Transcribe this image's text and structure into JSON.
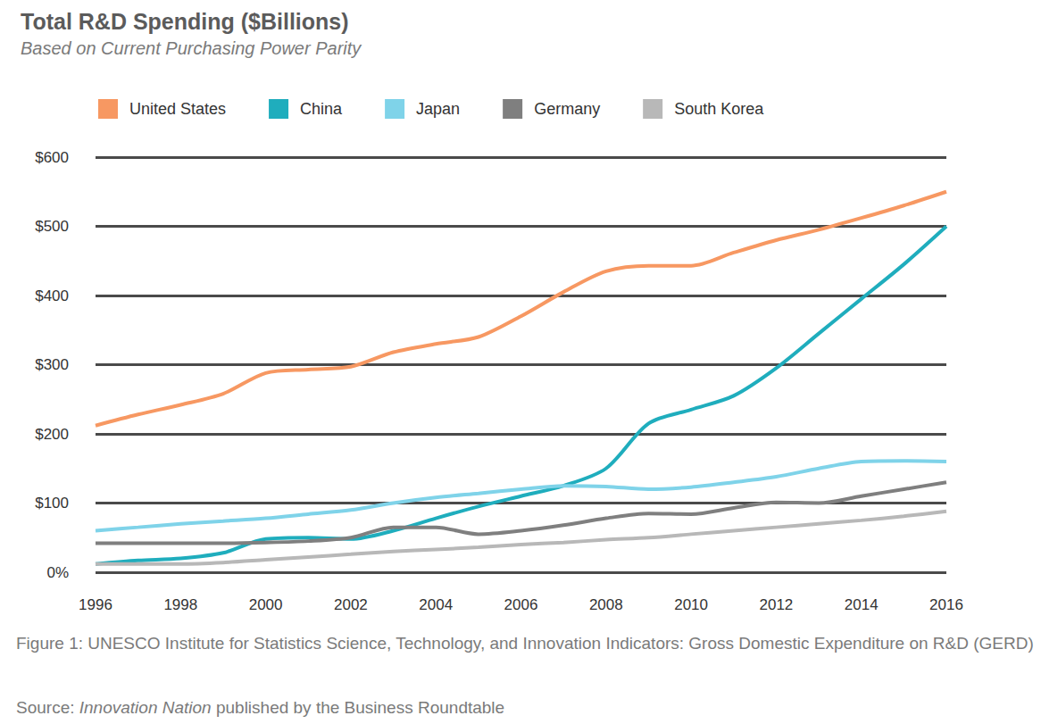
{
  "chart_data": {
    "type": "line",
    "title": "Total R&D Spending ($Billions)",
    "subtitle": "Based on Current Purchasing Power Parity",
    "caption": "Figure 1: UNESCO Institute for Statistics Science, Technology, and Innovation Indicators: Gross Domestic Expenditure on R&D (GERD)",
    "source_parts": [
      "Source: ",
      "Innovation Nation",
      " published by the Business Roundtable"
    ],
    "x": [
      1996,
      1997,
      1998,
      1999,
      2000,
      2001,
      2002,
      2003,
      2004,
      2005,
      2006,
      2007,
      2008,
      2009,
      2010,
      2011,
      2012,
      2013,
      2014,
      2015,
      2016
    ],
    "xlim": [
      1996,
      2016
    ],
    "xticks": [
      1996,
      1998,
      2000,
      2002,
      2004,
      2006,
      2008,
      2010,
      2012,
      2014,
      2016
    ],
    "ylim": [
      0,
      600
    ],
    "yticks": [
      {
        "value": 0,
        "label": "0%"
      },
      {
        "value": 100,
        "label": "$100"
      },
      {
        "value": 200,
        "label": "$200"
      },
      {
        "value": 300,
        "label": "$300"
      },
      {
        "value": 400,
        "label": "$400"
      },
      {
        "value": 500,
        "label": "$500"
      },
      {
        "value": 600,
        "label": "$600"
      }
    ],
    "grid": true,
    "legend": "top-left",
    "series": [
      {
        "name": "United States",
        "color": "#f79862",
        "values": [
          212,
          228,
          242,
          258,
          288,
          293,
          297,
          318,
          330,
          340,
          370,
          405,
          435,
          443,
          443,
          462,
          480,
          495,
          512,
          530,
          550
        ]
      },
      {
        "name": "China",
        "color": "#1fadbd",
        "values": [
          12,
          17,
          20,
          28,
          48,
          50,
          48,
          60,
          78,
          95,
          110,
          125,
          150,
          215,
          235,
          255,
          295,
          345,
          395,
          445,
          500
        ]
      },
      {
        "name": "Japan",
        "color": "#7fd3e9",
        "values": [
          60,
          65,
          70,
          74,
          78,
          84,
          90,
          100,
          108,
          114,
          120,
          125,
          124,
          120,
          123,
          130,
          138,
          150,
          160,
          161,
          160
        ]
      },
      {
        "name": "Germany",
        "color": "#7f7f7f",
        "values": [
          42,
          42,
          42,
          42,
          43,
          45,
          50,
          65,
          65,
          55,
          60,
          68,
          78,
          85,
          84,
          93,
          101,
          100,
          110,
          120,
          130
        ]
      },
      {
        "name": "South Korea",
        "color": "#b8b8b8",
        "values": [
          12,
          12,
          12,
          14,
          18,
          22,
          26,
          30,
          33,
          36,
          40,
          43,
          47,
          50,
          55,
          60,
          65,
          70,
          75,
          81,
          88
        ]
      }
    ]
  }
}
